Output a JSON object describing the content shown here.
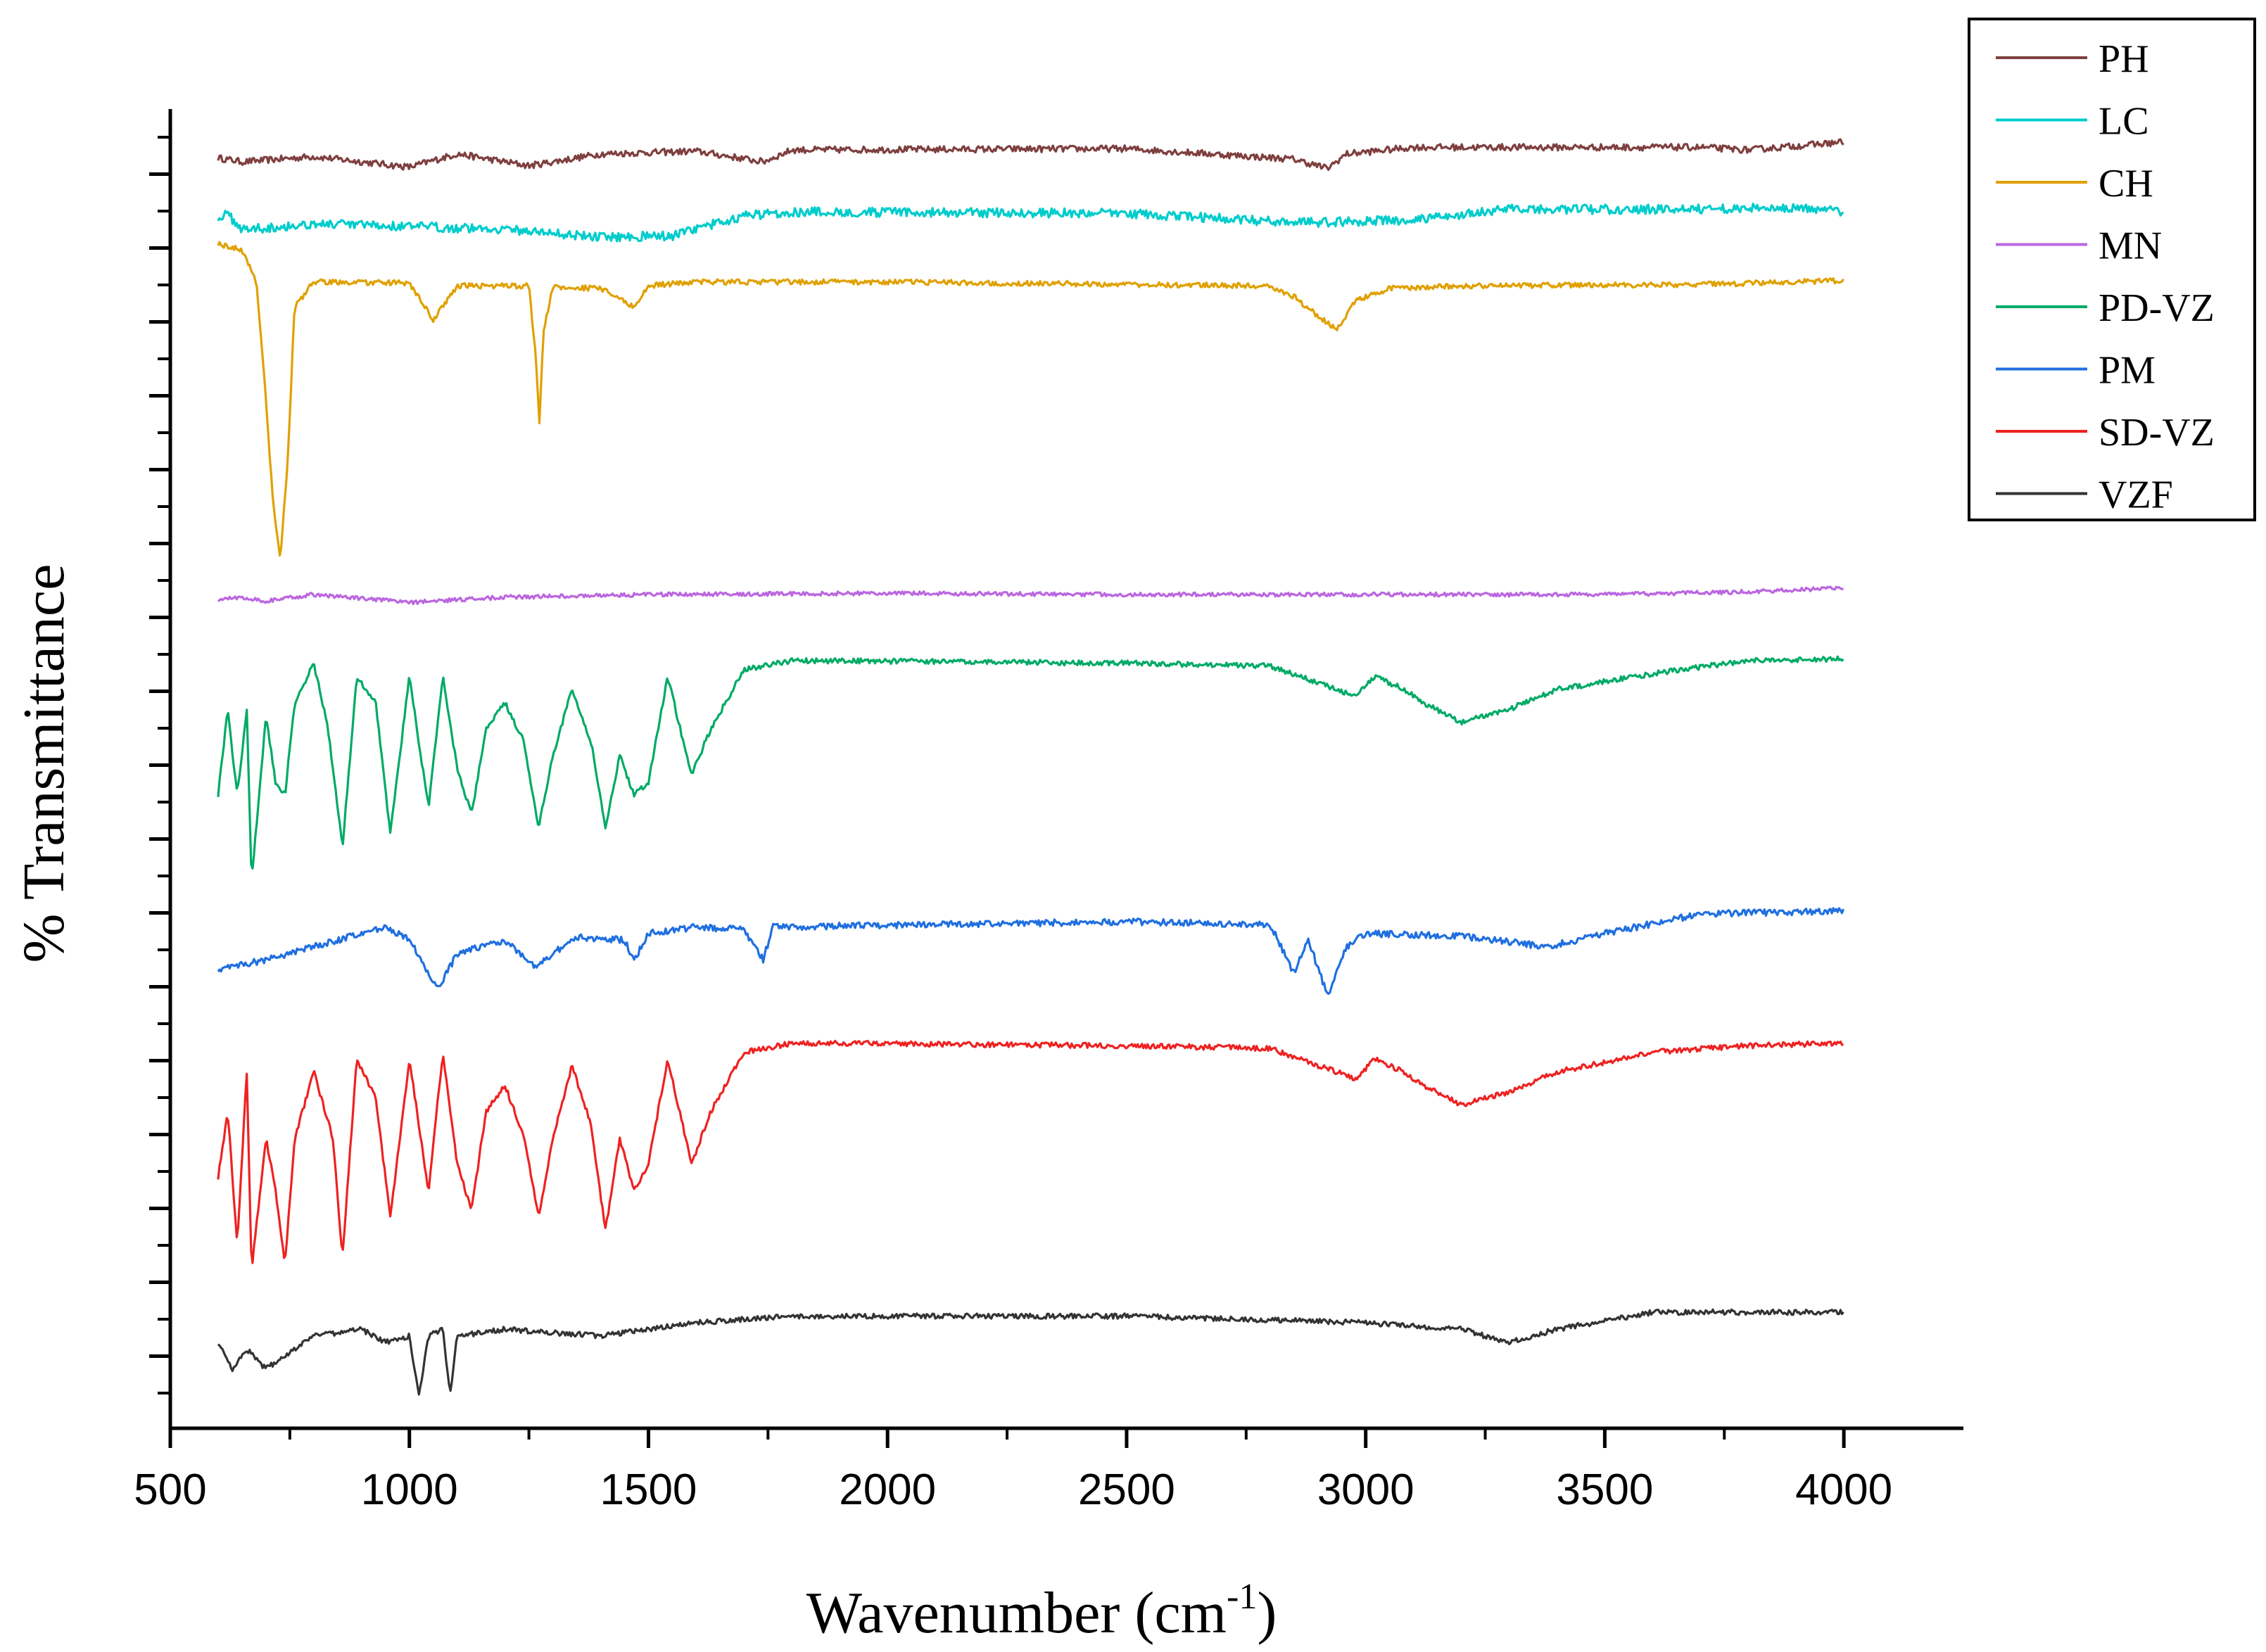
{
  "chart_data": {
    "type": "line",
    "title": "",
    "xlabel": "Wavenumber (cm",
    "xlabel_sup": "-1",
    "xlabel_close": ")",
    "ylabel": "% Transmittance",
    "xlim": [
      500,
      4250
    ],
    "ylim": [
      0,
      100
    ],
    "x_ticks": [
      "500",
      "1000",
      "1500",
      "2000",
      "2500",
      "3000",
      "3500",
      "4000"
    ],
    "y_tick_labels": "none",
    "legend_position": "top-right",
    "series": [
      {
        "name": "PH",
        "color": "#7f3f3f",
        "baseline": 97.2,
        "noise": 0.25,
        "points": [
          [
            600,
            96.3
          ],
          [
            650,
            96.0
          ],
          [
            800,
            96.4
          ],
          [
            1000,
            95.6
          ],
          [
            1100,
            96.6
          ],
          [
            1250,
            95.7
          ],
          [
            1400,
            96.6
          ],
          [
            1600,
            96.8
          ],
          [
            1740,
            96.0
          ],
          [
            1800,
            96.9
          ],
          [
            2500,
            97.0
          ],
          [
            2850,
            96.2
          ],
          [
            2920,
            95.5
          ],
          [
            2960,
            96.6
          ],
          [
            3100,
            97.1
          ],
          [
            3700,
            97.1
          ],
          [
            3800,
            96.9
          ],
          [
            4000,
            97.5
          ]
        ]
      },
      {
        "name": "LC",
        "color": "#00cccc",
        "baseline": 91.8,
        "noise": 0.35,
        "points": [
          [
            600,
            91.8
          ],
          [
            620,
            92.0
          ],
          [
            650,
            90.9
          ],
          [
            700,
            91.0
          ],
          [
            800,
            91.3
          ],
          [
            1000,
            91.1
          ],
          [
            1200,
            90.9
          ],
          [
            1400,
            90.3
          ],
          [
            1550,
            90.4
          ],
          [
            1700,
            91.9
          ],
          [
            1800,
            92.2
          ],
          [
            2500,
            92.1
          ],
          [
            2800,
            91.5
          ],
          [
            2900,
            91.4
          ],
          [
            3100,
            91.6
          ],
          [
            3300,
            92.4
          ],
          [
            3600,
            92.4
          ],
          [
            3900,
            92.5
          ],
          [
            4000,
            92.2
          ]
        ]
      },
      {
        "name": "CH",
        "color": "#e0a000",
        "baseline": 86.8,
        "noise": 0.2,
        "points": [
          [
            600,
            89.8
          ],
          [
            650,
            89.3
          ],
          [
            680,
            87.0
          ],
          [
            700,
            78.0
          ],
          [
            715,
            70.0
          ],
          [
            730,
            66.0
          ],
          [
            745,
            73.0
          ],
          [
            760,
            85.0
          ],
          [
            800,
            86.9
          ],
          [
            1000,
            86.8
          ],
          [
            1050,
            84.0
          ],
          [
            1100,
            86.6
          ],
          [
            1250,
            86.6
          ],
          [
            1265,
            81.0
          ],
          [
            1272,
            76.3
          ],
          [
            1280,
            83.0
          ],
          [
            1300,
            86.5
          ],
          [
            1400,
            86.4
          ],
          [
            1470,
            85.0
          ],
          [
            1500,
            86.6
          ],
          [
            1600,
            86.9
          ],
          [
            2000,
            86.9
          ],
          [
            2800,
            86.6
          ],
          [
            2850,
            85.8
          ],
          [
            2900,
            84.3
          ],
          [
            2940,
            83.3
          ],
          [
            2980,
            85.5
          ],
          [
            3050,
            86.4
          ],
          [
            3200,
            86.6
          ],
          [
            3700,
            86.7
          ],
          [
            4000,
            87.0
          ]
        ]
      },
      {
        "name": "MN",
        "color": "#bb66e0",
        "baseline": 63.5,
        "noise": 0.15,
        "points": [
          [
            600,
            62.8
          ],
          [
            650,
            63.0
          ],
          [
            700,
            62.7
          ],
          [
            800,
            63.2
          ],
          [
            1000,
            62.6
          ],
          [
            1200,
            63.0
          ],
          [
            1500,
            63.2
          ],
          [
            2000,
            63.3
          ],
          [
            2500,
            63.2
          ],
          [
            3000,
            63.2
          ],
          [
            3500,
            63.2
          ],
          [
            3800,
            63.4
          ],
          [
            4000,
            63.7
          ]
        ]
      },
      {
        "name": "PD-VZ",
        "color": "#00aa66",
        "baseline": 58.0,
        "noise": 0.2,
        "points": [
          [
            600,
            48.0
          ],
          [
            620,
            54.5
          ],
          [
            640,
            48.0
          ],
          [
            660,
            54.5
          ],
          [
            670,
            41.5
          ],
          [
            700,
            54.0
          ],
          [
            720,
            49.0
          ],
          [
            740,
            48.0
          ],
          [
            760,
            55.0
          ],
          [
            800,
            58.0
          ],
          [
            830,
            53.0
          ],
          [
            860,
            44.0
          ],
          [
            890,
            57.0
          ],
          [
            930,
            55.0
          ],
          [
            960,
            45.0
          ],
          [
            1000,
            57.0
          ],
          [
            1040,
            47.0
          ],
          [
            1070,
            57.0
          ],
          [
            1100,
            50.0
          ],
          [
            1130,
            46.5
          ],
          [
            1160,
            53.0
          ],
          [
            1200,
            55.0
          ],
          [
            1240,
            52.0
          ],
          [
            1270,
            45.5
          ],
          [
            1300,
            51.0
          ],
          [
            1340,
            56.0
          ],
          [
            1380,
            52.0
          ],
          [
            1410,
            45.5
          ],
          [
            1440,
            51.0
          ],
          [
            1470,
            48.0
          ],
          [
            1500,
            49.0
          ],
          [
            1540,
            57.0
          ],
          [
            1590,
            49.5
          ],
          [
            1630,
            53.0
          ],
          [
            1700,
            57.5
          ],
          [
            1800,
            58.2
          ],
          [
            2500,
            58.0
          ],
          [
            2800,
            57.8
          ],
          [
            2900,
            56.5
          ],
          [
            2980,
            55.5
          ],
          [
            3020,
            57.0
          ],
          [
            3080,
            56.0
          ],
          [
            3120,
            55.0
          ],
          [
            3200,
            53.5
          ],
          [
            3300,
            54.5
          ],
          [
            3400,
            56.0
          ],
          [
            3600,
            57.2
          ],
          [
            3800,
            58.2
          ],
          [
            4000,
            58.3
          ]
        ]
      },
      {
        "name": "PM",
        "color": "#1f6fe0",
        "baseline": 38.3,
        "noise": 0.25,
        "points": [
          [
            600,
            34.8
          ],
          [
            700,
            35.5
          ],
          [
            800,
            36.5
          ],
          [
            950,
            38.0
          ],
          [
            1000,
            37.0
          ],
          [
            1060,
            33.3
          ],
          [
            1100,
            36.0
          ],
          [
            1200,
            37.0
          ],
          [
            1260,
            35.0
          ],
          [
            1350,
            37.2
          ],
          [
            1450,
            37.0
          ],
          [
            1470,
            35.5
          ],
          [
            1500,
            37.5
          ],
          [
            1600,
            38.0
          ],
          [
            1700,
            37.8
          ],
          [
            1740,
            35.5
          ],
          [
            1760,
            38.0
          ],
          [
            2500,
            38.4
          ],
          [
            2800,
            38.2
          ],
          [
            2850,
            34.5
          ],
          [
            2880,
            37.0
          ],
          [
            2920,
            32.8
          ],
          [
            2960,
            36.5
          ],
          [
            3000,
            37.5
          ],
          [
            3200,
            37.3
          ],
          [
            3380,
            36.5
          ],
          [
            3500,
            37.5
          ],
          [
            3700,
            39.0
          ],
          [
            4000,
            39.2
          ]
        ]
      },
      {
        "name": "SD-VZ",
        "color": "#ee2222",
        "baseline": 29.0,
        "noise": 0.2,
        "points": [
          [
            600,
            19.0
          ],
          [
            620,
            24.0
          ],
          [
            640,
            14.0
          ],
          [
            660,
            27.0
          ],
          [
            670,
            12.0
          ],
          [
            700,
            22.0
          ],
          [
            720,
            18.0
          ],
          [
            740,
            12.5
          ],
          [
            760,
            22.0
          ],
          [
            800,
            27.0
          ],
          [
            840,
            22.0
          ],
          [
            860,
            13.0
          ],
          [
            890,
            28.0
          ],
          [
            930,
            25.0
          ],
          [
            960,
            16.0
          ],
          [
            1000,
            28.0
          ],
          [
            1040,
            18.0
          ],
          [
            1070,
            28.5
          ],
          [
            1100,
            20.0
          ],
          [
            1130,
            16.5
          ],
          [
            1160,
            24.0
          ],
          [
            1200,
            26.0
          ],
          [
            1240,
            22.0
          ],
          [
            1270,
            16.0
          ],
          [
            1300,
            22.0
          ],
          [
            1340,
            27.5
          ],
          [
            1380,
            23.0
          ],
          [
            1410,
            15.0
          ],
          [
            1440,
            22.0
          ],
          [
            1470,
            18.0
          ],
          [
            1500,
            20.0
          ],
          [
            1540,
            28.0
          ],
          [
            1590,
            20.0
          ],
          [
            1630,
            24.0
          ],
          [
            1700,
            28.5
          ],
          [
            1800,
            29.2
          ],
          [
            2500,
            29.0
          ],
          [
            2800,
            28.8
          ],
          [
            2900,
            27.5
          ],
          [
            2980,
            26.5
          ],
          [
            3020,
            28.0
          ],
          [
            3080,
            27.0
          ],
          [
            3120,
            26.0
          ],
          [
            3200,
            24.5
          ],
          [
            3300,
            25.5
          ],
          [
            3400,
            27.0
          ],
          [
            3600,
            28.5
          ],
          [
            3800,
            29.0
          ],
          [
            4000,
            29.2
          ]
        ]
      },
      {
        "name": "VZF",
        "color": "#333333",
        "baseline": 8.3,
        "noise": 0.2,
        "points": [
          [
            600,
            6.5
          ],
          [
            630,
            4.5
          ],
          [
            660,
            6.0
          ],
          [
            700,
            4.5
          ],
          [
            800,
            7.0
          ],
          [
            900,
            7.5
          ],
          [
            950,
            6.5
          ],
          [
            1000,
            7.0
          ],
          [
            1020,
            2.5
          ],
          [
            1040,
            7.0
          ],
          [
            1070,
            7.5
          ],
          [
            1085,
            2.5
          ],
          [
            1100,
            7.0
          ],
          [
            1200,
            7.5
          ],
          [
            1400,
            7.0
          ],
          [
            1600,
            8.0
          ],
          [
            1800,
            8.5
          ],
          [
            2500,
            8.5
          ],
          [
            3000,
            8.0
          ],
          [
            3200,
            7.5
          ],
          [
            3300,
            6.5
          ],
          [
            3400,
            7.5
          ],
          [
            3600,
            8.8
          ],
          [
            4000,
            8.8
          ]
        ]
      }
    ]
  }
}
